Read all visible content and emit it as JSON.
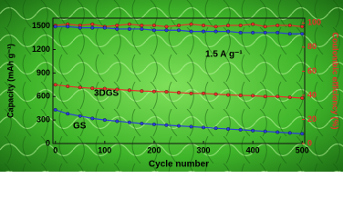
{
  "chart_data": {
    "type": "line",
    "x_label": "Cycle number",
    "y_label": "Capacity (mAh g⁻¹)",
    "y2_label": "Coulombic efficiency (%)",
    "annotation": "1.5 A g⁻¹",
    "x": [
      0,
      25,
      50,
      75,
      100,
      125,
      150,
      175,
      200,
      225,
      250,
      275,
      300,
      325,
      350,
      375,
      400,
      425,
      450,
      475,
      500
    ],
    "series": [
      {
        "name": "3DGS",
        "color": "#e8302a",
        "values": [
          750,
          730,
          715,
          705,
          700,
          690,
          680,
          670,
          665,
          660,
          650,
          640,
          640,
          630,
          620,
          615,
          610,
          600,
          600,
          590,
          580
        ]
      },
      {
        "name": "GS",
        "color": "#2a3fd8",
        "values": [
          430,
          380,
          350,
          320,
          300,
          285,
          270,
          255,
          245,
          235,
          225,
          215,
          205,
          195,
          185,
          175,
          165,
          155,
          145,
          135,
          125
        ]
      },
      {
        "color": "#e8302a",
        "axis": "y2",
        "values": [
          98,
          99,
          98,
          99,
          97,
          98,
          99,
          98,
          98,
          97,
          98,
          99,
          98,
          97,
          98,
          98,
          99,
          97,
          98,
          98,
          97
        ]
      },
      {
        "color": "#2a3fd8",
        "axis": "y2",
        "values": [
          97,
          97,
          96,
          96,
          96,
          95,
          95,
          95,
          94,
          94,
          94,
          93,
          93,
          93,
          93,
          92,
          92,
          92,
          92,
          91,
          91
        ]
      }
    ],
    "xlim": [
      -5,
      505
    ],
    "xticks": [
      0,
      100,
      200,
      300,
      400,
      500
    ],
    "ylim": [
      0,
      1600
    ],
    "yticks": [
      0,
      300,
      600,
      900,
      1200,
      1500
    ],
    "y2lim": [
      0,
      104
    ],
    "y2ticks": [
      0,
      20,
      40,
      60,
      80,
      100
    ]
  }
}
